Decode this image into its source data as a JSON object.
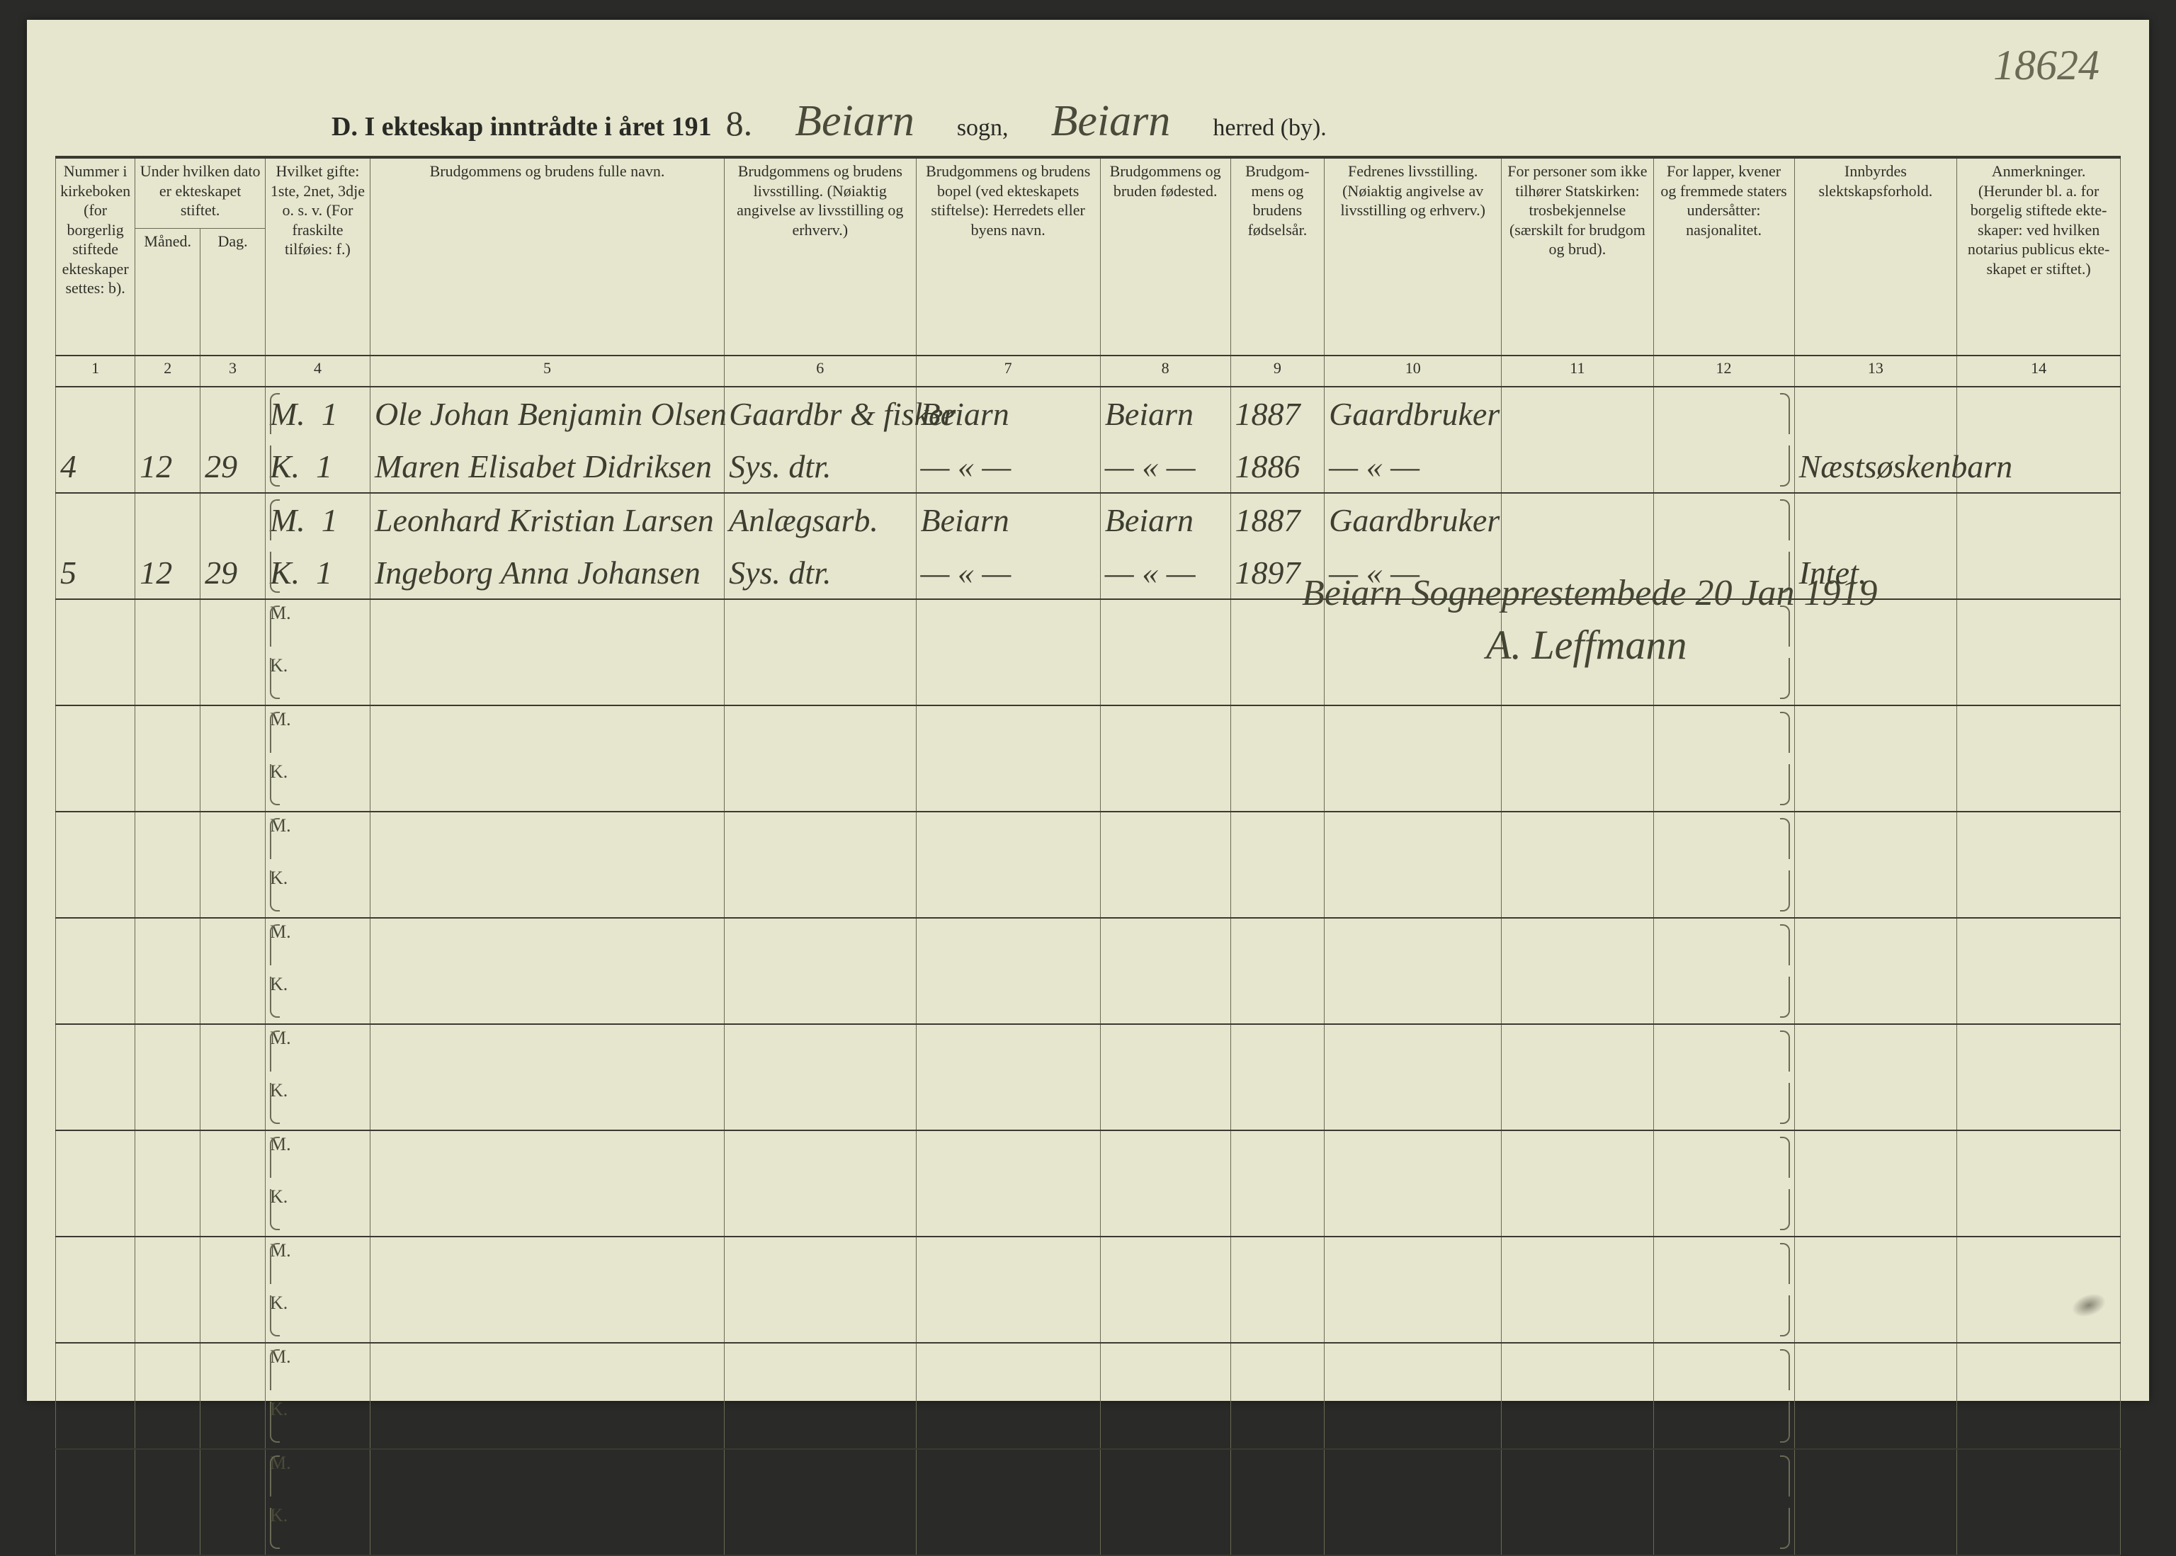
{
  "page_number_top": "18624",
  "title": {
    "prefix": "D.  I ekteskap inntrådte i året 191",
    "year_digit": "8.",
    "sogn_name": "Beiarn",
    "sogn_label": "sogn,",
    "herred_name": "Beiarn",
    "herred_label": "herred (by)."
  },
  "headers": {
    "c1": "Nummer i kirke­boken (for borgerlig stiftede ekteskaper settes: b).",
    "c2_3_top": "Under hvilken dato er ekte­skapet stiftet.",
    "c2": "Måned.",
    "c3": "Dag.",
    "c4": "Hvilket gifte: 1ste, 2net, 3dje o. s. v. (For fraskilte tilføies: f.)",
    "c5": "Brudgommens og brudens fulle navn.",
    "c6": "Brudgommens og brudens livsstilling. (Nøiaktig angivelse av livs­stilling og erhverv.)",
    "c7": "Brudgommens og brudens bopel (ved ekteskapets stiftelse): Herredets eller byens navn.",
    "c8": "Brudgommens og bruden fødested.",
    "c9": "Brudgom­mens og brudens fødselsår.",
    "c10": "Fedrenes livsstilling. (Nøiaktig angivelse av livs­stilling og erhverv.)",
    "c11": "For personer som ikke tilhører Statskirken: trosbekjennelse (særskilt for brudgom og brud).",
    "c12": "For lapper, kvener og fremmede staters undersåtter: nasjonalitet.",
    "c13": "Innbyrdes slektskapsforhold.",
    "c14": "Anmerkninger. (Herunder bl. a. for borgelig stiftede ekte­skaper: ved hvilken notarius publicus ekte­skapet er stiftet.)"
  },
  "col_nums": [
    "1",
    "2",
    "3",
    "4",
    "5",
    "6",
    "7",
    "8",
    "9",
    "10",
    "11",
    "12",
    "13",
    "14"
  ],
  "rows": [
    {
      "num": "4",
      "month": "12",
      "day": "29",
      "M": {
        "gifte": "1",
        "navn": "Ole Johan Benjamin Olsen",
        "stilling": "Gaardbr & fisker",
        "bopel": "Beiarn",
        "fodested": "Beiarn",
        "aar": "1887",
        "far": "Gaardbruker"
      },
      "K": {
        "gifte": "1",
        "navn": "Maren Elisabet Didriksen",
        "stilling": "Sys. dtr.",
        "bopel": "— « —",
        "fodested": "— « —",
        "aar": "1886",
        "far": "— « —"
      },
      "c13": "Næstsøskenbarn"
    },
    {
      "num": "5",
      "month": "12",
      "day": "29",
      "M": {
        "gifte": "1",
        "navn": "Leonhard Kristian Larsen",
        "stilling": "Anlægsarb.",
        "bopel": "Beiarn",
        "fodested": "Beiarn",
        "aar": "1887",
        "far": "Gaardbruker"
      },
      "K": {
        "gifte": "1",
        "navn": "Ingeborg Anna Johansen",
        "stilling": "Sys. dtr.",
        "bopel": "— « —",
        "fodested": "— « —",
        "aar": "1897",
        "far": "— « —"
      },
      "c13": "Intet."
    }
  ],
  "signature": {
    "line1": "Beiarn Sogneprestembede  20 Jan 1919",
    "line2": "A. Leffmann"
  },
  "blank_pairs": 9,
  "mk_labels": {
    "M": "M.",
    "K": "K."
  },
  "style": {
    "paper_bg": "#e6e6cf",
    "rule_dark": "#3a3a30",
    "rule_light": "#6a6a55",
    "ink": "#3d3d30",
    "header_fontsize_pt": 16,
    "cursive_fontsize_pt": 34
  }
}
